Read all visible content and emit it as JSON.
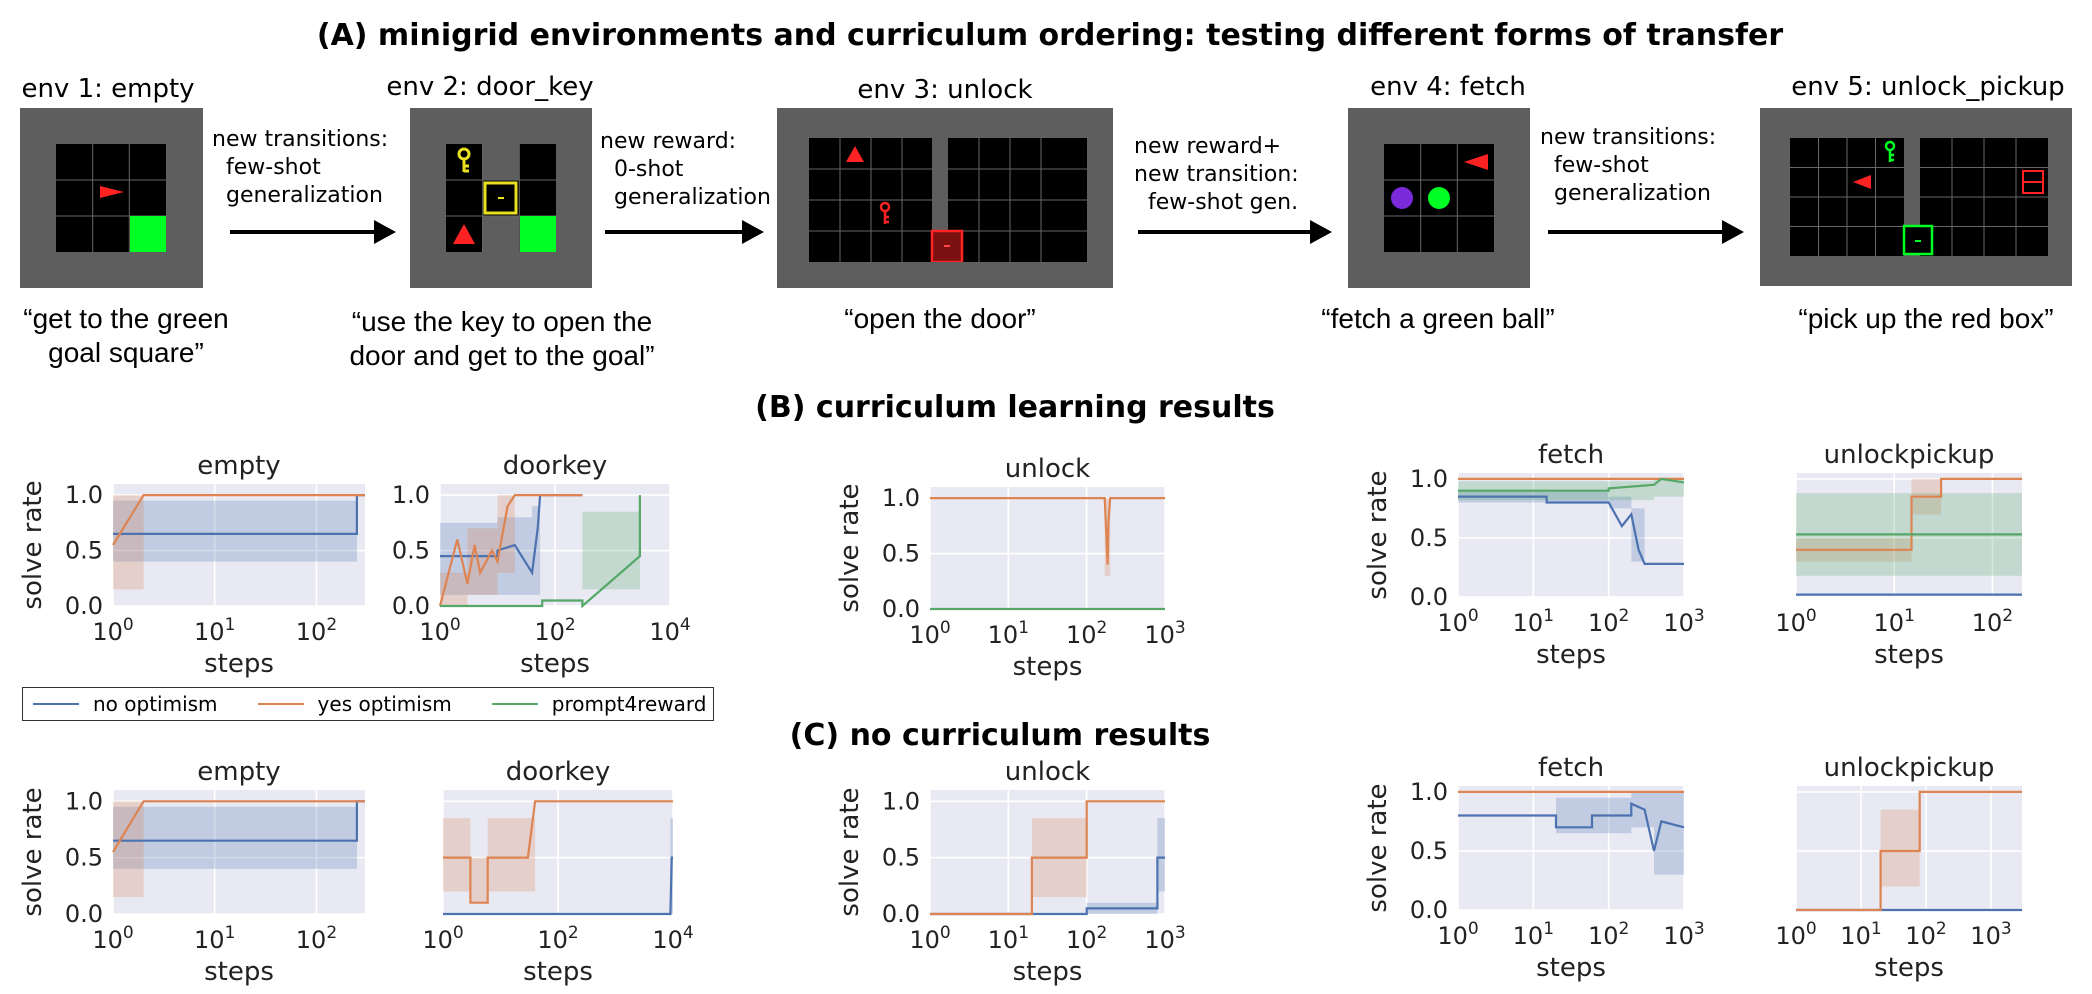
{
  "section_a": {
    "title": "(A) minigrid environments and curriculum ordering: testing different forms of transfer"
  },
  "section_b": {
    "title": "(B) curriculum learning results"
  },
  "section_c": {
    "title": "(C) no curriculum results"
  },
  "envs": [
    {
      "label": "env 1: empty",
      "instruction": "“get to the green\ngoal square”"
    },
    {
      "label": "env 2: door_key",
      "instruction": "“use the key to open the\ndoor and get to the goal”"
    },
    {
      "label": "env 3: unlock",
      "instruction": "“open the door”"
    },
    {
      "label": "env 4: fetch",
      "instruction": "“fetch a green ball”"
    },
    {
      "label": "env 5: unlock_pickup",
      "instruction": "“pick up the red box”"
    }
  ],
  "transitions": [
    "new transitions:\n  few-shot\n  generalization",
    "new reward:\n  0-shot\n  generalization",
    "new reward+\nnew transition:\n  few-shot gen.",
    "new transitions:\n  few-shot\n  generalization"
  ],
  "legend": [
    {
      "label": "no optimism",
      "color": "#4c72b0"
    },
    {
      "label": "yes optimism",
      "color": "#dd8452"
    },
    {
      "label": "prompt4reward",
      "color": "#55a868"
    }
  ],
  "colors": {
    "panel_bg": "#e8e9f2",
    "grid": "#ffffff",
    "env_frame": "#5e5e5e",
    "goal": "#00ff22",
    "agent": "#ff2222",
    "key_yellow": "#e8e020"
  },
  "chart_data": [
    {
      "type": "line",
      "row": "curriculum",
      "title": "empty",
      "xlabel": "steps",
      "ylabel": "solve rate",
      "xscale": "log",
      "xlim": [
        1,
        300
      ],
      "xticks": [
        "10^0",
        "10^1",
        "10^2"
      ],
      "ylim": [
        0,
        1.1
      ],
      "yticks": [
        "0.0",
        "0.5",
        "1.0"
      ],
      "series": [
        {
          "name": "no optimism",
          "x": [
            1,
            250,
            250,
            300
          ],
          "y": [
            0.65,
            0.65,
            1.0,
            1.0
          ],
          "band_x": [
            1,
            250
          ],
          "band_low": [
            0.4,
            0.4
          ],
          "band_high": [
            0.95,
            0.95
          ]
        },
        {
          "name": "yes optimism",
          "x": [
            1,
            2,
            300
          ],
          "y": [
            0.55,
            1.0,
            1.0
          ],
          "band_x": [
            1,
            2,
            300
          ],
          "band_low": [
            0.15,
            1.0,
            1.0
          ],
          "band_high": [
            1.0,
            1.0,
            1.0
          ]
        }
      ]
    },
    {
      "type": "line",
      "row": "curriculum",
      "title": "doorkey",
      "xlabel": "steps",
      "ylabel": "",
      "xscale": "log",
      "xlim": [
        1,
        10000
      ],
      "xticks": [
        "10^0",
        "10^2",
        "10^4"
      ],
      "ylim": [
        0,
        1.1
      ],
      "yticks": [
        "0.0",
        "0.5",
        "1.0"
      ],
      "series": [
        {
          "name": "no optimism",
          "x": [
            1,
            10,
            10,
            20,
            40,
            50,
            55,
            60,
            300
          ],
          "y": [
            0.45,
            0.45,
            0.5,
            0.55,
            0.3,
            0.7,
            1.0,
            1.0,
            1.0
          ],
          "band_x": [
            1,
            10,
            40,
            55
          ],
          "band_low": [
            0.1,
            0.1,
            0.1,
            1.0
          ],
          "band_high": [
            0.75,
            0.8,
            0.9,
            1.0
          ]
        },
        {
          "name": "yes optimism",
          "x": [
            1,
            2,
            3,
            4,
            5,
            8,
            10,
            15,
            20,
            50,
            300
          ],
          "y": [
            0.0,
            0.6,
            0.2,
            0.55,
            0.3,
            0.5,
            0.4,
            0.9,
            1.0,
            1.0,
            1.0
          ],
          "band_x": [
            1,
            3,
            10,
            20
          ],
          "band_low": [
            0.0,
            0.1,
            0.3,
            1.0
          ],
          "band_high": [
            0.3,
            0.7,
            1.0,
            1.0
          ]
        },
        {
          "name": "prompt4reward",
          "x": [
            1,
            60,
            60,
            300,
            300,
            3000,
            3000
          ],
          "y": [
            0.0,
            0.0,
            0.05,
            0.05,
            0.0,
            0.45,
            1.0
          ],
          "band_x": [
            300,
            3000
          ],
          "band_low": [
            0.15,
            0.15
          ],
          "band_high": [
            0.85,
            0.85
          ]
        }
      ]
    },
    {
      "type": "line",
      "row": "curriculum",
      "title": "unlock",
      "xlabel": "steps",
      "ylabel": "solve rate",
      "xscale": "log",
      "xlim": [
        1,
        1000
      ],
      "xticks": [
        "10^0",
        "10^1",
        "10^2",
        "10^3"
      ],
      "ylim": [
        0,
        1.1
      ],
      "yticks": [
        "0.0",
        "0.5",
        "1.0"
      ],
      "series": [
        {
          "name": "yes optimism",
          "x": [
            1,
            170,
            185,
            190,
            200,
            1000
          ],
          "y": [
            1.0,
            1.0,
            0.4,
            0.8,
            1.0,
            1.0
          ],
          "band_x": [
            170,
            200
          ],
          "band_low": [
            0.3,
            1.0
          ],
          "band_high": [
            1.0,
            1.0
          ]
        },
        {
          "name": "prompt4reward",
          "x": [
            1,
            1000
          ],
          "y": [
            0.0,
            0.0
          ]
        }
      ]
    },
    {
      "type": "line",
      "row": "curriculum",
      "title": "fetch",
      "xlabel": "steps",
      "ylabel": "solve rate",
      "xscale": "log",
      "xlim": [
        1,
        1000
      ],
      "xticks": [
        "10^0",
        "10^1",
        "10^2",
        "10^3"
      ],
      "ylim": [
        0,
        1.05
      ],
      "yticks": [
        "0.0",
        "0.5",
        "1.0"
      ],
      "series": [
        {
          "name": "no optimism",
          "x": [
            1,
            15,
            15,
            100,
            150,
            200,
            250,
            300,
            1000
          ],
          "y": [
            0.85,
            0.85,
            0.8,
            0.8,
            0.6,
            0.7,
            0.4,
            0.28,
            0.28
          ],
          "band_x": [
            1,
            100,
            200,
            300
          ],
          "band_low": [
            0.8,
            0.75,
            0.3,
            0.2
          ],
          "band_high": [
            0.9,
            0.85,
            0.75,
            0.5
          ]
        },
        {
          "name": "yes optimism",
          "x": [
            1,
            1000
          ],
          "y": [
            1.0,
            1.0
          ]
        },
        {
          "name": "prompt4reward",
          "x": [
            1,
            100,
            100,
            400,
            500,
            1000
          ],
          "y": [
            0.9,
            0.9,
            0.92,
            0.95,
            1.0,
            0.97
          ],
          "band_x": [
            1,
            400,
            1000
          ],
          "band_low": [
            0.82,
            0.85,
            0.92
          ],
          "band_high": [
            0.98,
            1.0,
            1.0
          ]
        }
      ]
    },
    {
      "type": "line",
      "row": "curriculum",
      "title": "unlockpickup",
      "xlabel": "steps",
      "ylabel": "",
      "xscale": "log",
      "xlim": [
        1,
        200
      ],
      "xticks": [
        "10^0",
        "10^1",
        "10^2"
      ],
      "ylim": [
        0,
        1.05
      ],
      "yticks": [],
      "series": [
        {
          "name": "no optimism",
          "x": [
            1,
            200
          ],
          "y": [
            0.02,
            0.02
          ]
        },
        {
          "name": "yes optimism",
          "x": [
            1,
            15,
            15,
            30,
            30,
            200
          ],
          "y": [
            0.4,
            0.4,
            0.85,
            0.85,
            1.0,
            1.0
          ],
          "band_x": [
            1,
            15,
            30
          ],
          "band_low": [
            0.3,
            0.7,
            1.0
          ],
          "band_high": [
            0.5,
            1.0,
            1.0
          ]
        },
        {
          "name": "prompt4reward",
          "x": [
            1,
            200
          ],
          "y": [
            0.53,
            0.53
          ],
          "band_x": [
            1,
            200
          ],
          "band_low": [
            0.18,
            0.18
          ],
          "band_high": [
            0.88,
            0.88
          ]
        }
      ]
    },
    {
      "type": "line",
      "row": "no_curriculum",
      "title": "empty",
      "xlabel": "steps",
      "ylabel": "solve rate",
      "xscale": "log",
      "xlim": [
        1,
        300
      ],
      "xticks": [
        "10^0",
        "10^1",
        "10^2"
      ],
      "ylim": [
        0,
        1.1
      ],
      "yticks": [
        "0.0",
        "0.5",
        "1.0"
      ],
      "series": [
        {
          "name": "no optimism",
          "x": [
            1,
            250,
            250,
            300
          ],
          "y": [
            0.65,
            0.65,
            1.0,
            1.0
          ],
          "band_x": [
            1,
            250
          ],
          "band_low": [
            0.4,
            0.4
          ],
          "band_high": [
            0.95,
            0.95
          ]
        },
        {
          "name": "yes optimism",
          "x": [
            1,
            2,
            300
          ],
          "y": [
            0.55,
            1.0,
            1.0
          ],
          "band_x": [
            1,
            2,
            300
          ],
          "band_low": [
            0.15,
            1.0,
            1.0
          ],
          "band_high": [
            1.0,
            1.0,
            1.0
          ]
        }
      ]
    },
    {
      "type": "line",
      "row": "no_curriculum",
      "title": "doorkey",
      "xlabel": "steps",
      "ylabel": "",
      "xscale": "log",
      "xlim": [
        1,
        10000
      ],
      "xticks": [
        "10^0",
        "10^2",
        "10^4"
      ],
      "ylim": [
        0,
        1.1
      ],
      "yticks": [],
      "series": [
        {
          "name": "no optimism",
          "x": [
            1,
            9000,
            9500,
            10000
          ],
          "y": [
            0.0,
            0.0,
            0.5,
            0.5
          ],
          "band_x": [
            9000,
            10000
          ],
          "band_low": [
            0.0,
            0.0
          ],
          "band_high": [
            0.85,
            0.85
          ]
        },
        {
          "name": "yes optimism",
          "x": [
            1,
            3,
            3,
            6,
            6,
            30,
            40,
            10000
          ],
          "y": [
            0.5,
            0.5,
            0.1,
            0.1,
            0.5,
            0.5,
            1.0,
            1.0
          ],
          "band_x": [
            1,
            3,
            6,
            40
          ],
          "band_low": [
            0.2,
            0.1,
            0.2,
            1.0
          ],
          "band_high": [
            0.85,
            0.5,
            0.85,
            1.0
          ]
        }
      ]
    },
    {
      "type": "line",
      "row": "no_curriculum",
      "title": "unlock",
      "xlabel": "steps",
      "ylabel": "solve rate",
      "xscale": "log",
      "xlim": [
        1,
        1000
      ],
      "xticks": [
        "10^0",
        "10^1",
        "10^2",
        "10^3"
      ],
      "ylim": [
        0,
        1.1
      ],
      "yticks": [
        "0.0",
        "0.5",
        "1.0"
      ],
      "series": [
        {
          "name": "no optimism",
          "x": [
            1,
            100,
            100,
            800,
            800,
            1000
          ],
          "y": [
            0.0,
            0.0,
            0.05,
            0.05,
            0.5,
            0.5
          ],
          "band_x": [
            100,
            800,
            1000
          ],
          "band_low": [
            0.0,
            0.2,
            0.2
          ],
          "band_high": [
            0.1,
            0.85,
            0.85
          ]
        },
        {
          "name": "yes optimism",
          "x": [
            1,
            20,
            20,
            100,
            100,
            1000
          ],
          "y": [
            0.0,
            0.0,
            0.5,
            0.5,
            1.0,
            1.0
          ],
          "band_x": [
            20,
            100,
            1000
          ],
          "band_low": [
            0.15,
            1.0,
            1.0
          ],
          "band_high": [
            0.85,
            1.0,
            1.0
          ]
        }
      ]
    },
    {
      "type": "line",
      "row": "no_curriculum",
      "title": "fetch",
      "xlabel": "steps",
      "ylabel": "solve rate",
      "xscale": "log",
      "xlim": [
        1,
        1000
      ],
      "xticks": [
        "10^0",
        "10^1",
        "10^2",
        "10^3"
      ],
      "ylim": [
        0,
        1.05
      ],
      "yticks": [
        "0.0",
        "0.5",
        "1.0"
      ],
      "series": [
        {
          "name": "no optimism",
          "x": [
            1,
            20,
            20,
            60,
            60,
            200,
            200,
            300,
            400,
            500,
            1000
          ],
          "y": [
            0.8,
            0.8,
            0.7,
            0.7,
            0.8,
            0.8,
            0.9,
            0.85,
            0.5,
            0.75,
            0.7
          ],
          "band_x": [
            20,
            200,
            400,
            1000
          ],
          "band_low": [
            0.65,
            0.7,
            0.3,
            0.6
          ],
          "band_high": [
            0.95,
            1.0,
            1.0,
            0.8
          ]
        },
        {
          "name": "yes optimism",
          "x": [
            1,
            1000
          ],
          "y": [
            1.0,
            1.0
          ]
        }
      ]
    },
    {
      "type": "line",
      "row": "no_curriculum",
      "title": "unlockpickup",
      "xlabel": "steps",
      "ylabel": "",
      "xscale": "log",
      "xlim": [
        1,
        3000
      ],
      "xticks": [
        "10^0",
        "10^1",
        "10^2",
        "10^3"
      ],
      "ylim": [
        0,
        1.05
      ],
      "yticks": [],
      "series": [
        {
          "name": "no optimism",
          "x": [
            1,
            3000
          ],
          "y": [
            0.0,
            0.0
          ]
        },
        {
          "name": "yes optimism",
          "x": [
            1,
            20,
            20,
            80,
            80,
            3000
          ],
          "y": [
            0.0,
            0.0,
            0.5,
            0.5,
            1.0,
            1.0
          ],
          "band_x": [
            20,
            80,
            3000
          ],
          "band_low": [
            0.2,
            1.0,
            1.0
          ],
          "band_high": [
            0.85,
            1.0,
            1.0
          ]
        }
      ]
    }
  ]
}
